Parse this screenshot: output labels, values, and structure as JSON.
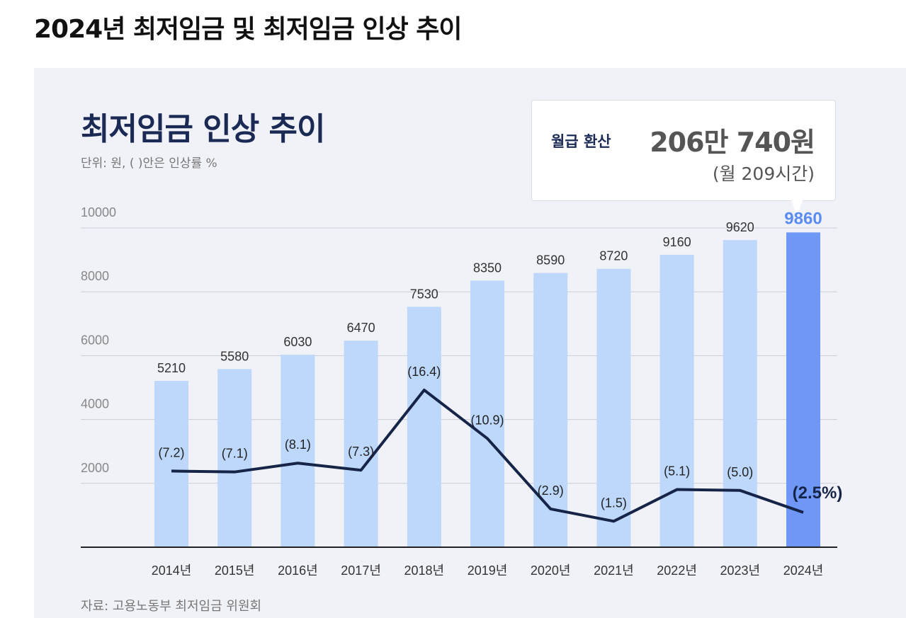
{
  "page_title": "2024년 최저임금 및 최저임금 인상 추이",
  "callout": {
    "label": "월급 환산",
    "value": "206만 740원",
    "note": "(월 209시간)"
  },
  "source": "자료: 고용노동부 최저임금 위원회",
  "colors": {
    "bar": "#bdd8fb",
    "bar_highlight": "#6f97f5",
    "line": "#162447",
    "title": "#1b2a55",
    "panel_bg": "#f0f2f7",
    "highlight_label": "#5b8cf2"
  },
  "chart_data": {
    "type": "bar",
    "title": "최저임금 인상 추이",
    "subtitle": "단위: 원, ( )안은 인상률 %",
    "categories": [
      "2014년",
      "2015년",
      "2016년",
      "2017년",
      "2018년",
      "2019년",
      "2020년",
      "2021년",
      "2022년",
      "2023년",
      "2024년"
    ],
    "series": [
      {
        "values": [
          5210,
          5580,
          6030,
          6470,
          7530,
          8350,
          8590,
          8720,
          9160,
          9620,
          9860
        ]
      },
      {
        "type": "line",
        "values": [
          7.2,
          7.1,
          8.1,
          7.3,
          16.4,
          10.9,
          2.9,
          1.5,
          5.1,
          5.0,
          2.5
        ],
        "labels": [
          "(7.2)",
          "(7.1)",
          "(8.1)",
          "(7.3)",
          "(16.4)",
          "(10.9)",
          "(2.9)",
          "(1.5)",
          "(5.1)",
          "(5.0)",
          "(2.5%)"
        ]
      }
    ],
    "y_ticks": [
      "10000",
      "8000",
      "6000",
      "4000",
      "2000"
    ],
    "ylim": [
      0,
      10000
    ],
    "grid": true,
    "highlight_index": 10
  }
}
